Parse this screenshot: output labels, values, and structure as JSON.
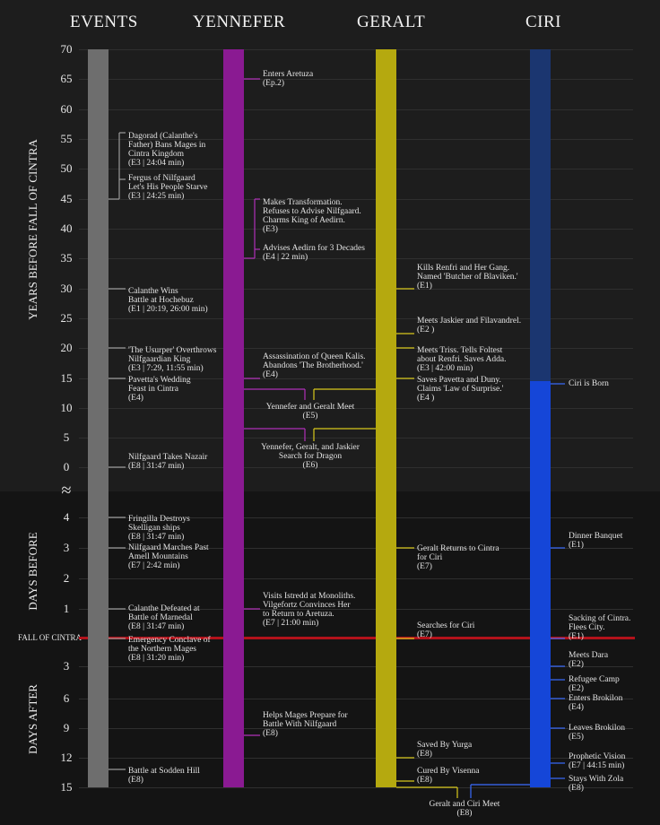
{
  "headers": [
    "EVENTS",
    "YENNEFER",
    "GERALT",
    "CIRI"
  ],
  "axis": {
    "years_ticks": [
      "70",
      "65",
      "60",
      "55",
      "50",
      "45",
      "40",
      "35",
      "30",
      "25",
      "20",
      "15",
      "10",
      "5",
      "0"
    ],
    "break_symbol": "≈",
    "days_before_ticks": [
      "4",
      "3",
      "2",
      "1"
    ],
    "fall_label": "FALL OF CINTRA",
    "days_after_ticks": [
      "3",
      "6",
      "9",
      "12",
      "15"
    ],
    "years_label": "YEARS BEFORE FALL OF CINTRA",
    "days_before_label": "DAYS BEFORE",
    "days_after_label": "DAYS AFTER"
  },
  "colors": {
    "events": "#6e6e6e",
    "yennefer": "#8a1a92",
    "geralt": "#b5a90f",
    "ciri_faded": "#1b3670",
    "ciri": "#1546d8",
    "fall_line": "#b3121b"
  },
  "events": [
    {
      "lines": [
        "Dagorad (Calanthe's",
        "Father) Bans Mages in",
        "Cintra Kingdom",
        "(E3 | 24:04 min)"
      ]
    },
    {
      "lines": [
        "Fergus of Nilfgaard",
        "Let's His People Starve",
        "(E3 | 24:25 min)"
      ]
    },
    {
      "lines": [
        "Calanthe Wins",
        "Battle at Hochebuz",
        "(E1 | 20:19, 26:00 min)"
      ]
    },
    {
      "lines": [
        "'The Usurper' Overthrows",
        "Nilfgaardian King",
        "(E3 | 7:29, 11:55 min)"
      ]
    },
    {
      "lines": [
        "Pavetta's Wedding",
        "Feast in Cintra",
        "(E4)"
      ]
    },
    {
      "lines": [
        "Nilfgaard Takes Nazair",
        "(E8 | 31:47 min)"
      ]
    },
    {
      "lines": [
        "Fringilla Destroys",
        "Skelligan ships",
        "(E8 | 31:47 min)"
      ]
    },
    {
      "lines": [
        "Nilfgaard Marches Past",
        "Amell Mountains",
        "(E7 | 2:42 min)"
      ]
    },
    {
      "lines": [
        "Calanthe Defeated at",
        "Battle of Marnedal",
        "(E8 | 31:47 min)"
      ]
    },
    {
      "lines": [
        "Emergency Conclave of",
        "the Northern Mages",
        "(E8 | 31:20 min)"
      ]
    },
    {
      "lines": [
        "Battle at Sodden Hill",
        "(E8)"
      ]
    }
  ],
  "yennefer": [
    {
      "lines": [
        "Enters Aretuza",
        "(Ep.2)"
      ]
    },
    {
      "lines": [
        "Makes Transformation.",
        "Refuses to Advise Nilfgaard.",
        "Charms King of Aedirn.",
        "(E3)"
      ]
    },
    {
      "lines": [
        "Advises Aedirn for 3 Decades",
        "(E4 | 22 min)"
      ]
    },
    {
      "lines": [
        "Assassination of Queen Kalis.",
        "Abandons 'The Brotherhood.'",
        "(E4)"
      ]
    },
    {
      "lines": [
        "Visits Istredd at Monoliths.",
        "Vilgefortz Convinces Her",
        "to Return to Aretuza.",
        "(E7 | 21:00 min)"
      ]
    },
    {
      "lines": [
        "Helps Mages Prepare for",
        "Battle With Nilfgaard",
        "(E8)"
      ]
    }
  ],
  "geralt": [
    {
      "lines": [
        "Kills Renfri and Her Gang.",
        "Named 'Butcher of Blaviken.'",
        "(E1)"
      ]
    },
    {
      "lines": [
        "Meets Jaskier and Filavandrel.",
        "(E2 )"
      ]
    },
    {
      "lines": [
        "Meets Triss. Tells Foltest",
        "about Renfri. Saves Adda.",
        "(E3 | 42:00 min)"
      ]
    },
    {
      "lines": [
        "Saves Pavetta and Duny.",
        "Claims 'Law of Surprise.'",
        "(E4 )"
      ]
    },
    {
      "lines": [
        "Geralt Returns to Cintra",
        "for Ciri",
        "(E7)"
      ]
    },
    {
      "lines": [
        "Searches for Ciri",
        "(E7)"
      ]
    },
    {
      "lines": [
        "Saved By Yurga",
        "(E8)"
      ]
    },
    {
      "lines": [
        "Cured By Visenna",
        "(E8)"
      ]
    }
  ],
  "ciri": [
    {
      "lines": [
        "Ciri is Born"
      ]
    },
    {
      "lines": [
        "Dinner Banquet",
        "(E1)"
      ]
    },
    {
      "lines": [
        "Sacking of Cintra.",
        "Flees City.",
        "(E1)"
      ]
    },
    {
      "lines": [
        "Meets Dara",
        "(E2)"
      ]
    },
    {
      "lines": [
        "Refugee Camp",
        "(E2)"
      ]
    },
    {
      "lines": [
        "Enters Brokilon",
        "(E4)"
      ]
    },
    {
      "lines": [
        "Leaves Brokilon",
        "(E5)"
      ]
    },
    {
      "lines": [
        "Prophetic Vision",
        "(E7 | 44:15 min)"
      ]
    },
    {
      "lines": [
        "Stays With Zola",
        "(E8)"
      ]
    }
  ],
  "shared": [
    {
      "lines": [
        "Yennefer and Geralt Meet",
        "(E5)"
      ]
    },
    {
      "lines": [
        "Yennefer, Geralt, and Jaskier",
        "Search for Dragon",
        "(E6)"
      ]
    },
    {
      "lines": [
        "Geralt and Ciri Meet",
        "(E8)"
      ]
    }
  ]
}
